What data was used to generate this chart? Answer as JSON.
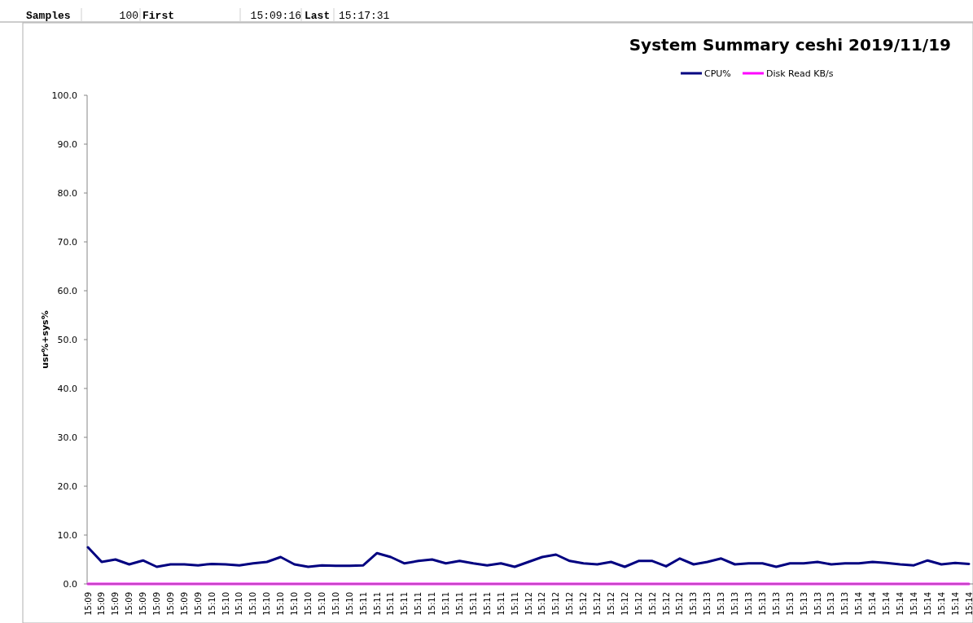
{
  "chart_data": {
    "type": "line",
    "title": "System Summary ceshi  2019/11/19",
    "ylabel": "usr%+sys%",
    "annotations": [
      "Samples",
      "100",
      "First",
      "15:09:16",
      "Last",
      "15:17:31"
    ],
    "categories": [
      "15:09",
      "15:09",
      "15:09",
      "15:09",
      "15:09",
      "15:09",
      "15:09",
      "15:09",
      "15:09",
      "15:10",
      "15:10",
      "15:10",
      "15:10",
      "15:10",
      "15:10",
      "15:10",
      "15:10",
      "15:10",
      "15:10",
      "15:10",
      "15:11",
      "15:11",
      "15:11",
      "15:11",
      "15:11",
      "15:11",
      "15:11",
      "15:11",
      "15:11",
      "15:11",
      "15:11",
      "15:11",
      "15:12",
      "15:12",
      "15:12",
      "15:12",
      "15:12",
      "15:12",
      "15:12",
      "15:12",
      "15:12",
      "15:12",
      "15:12",
      "15:12",
      "15:13",
      "15:13",
      "15:13",
      "15:13",
      "15:13",
      "15:13",
      "15:13",
      "15:13",
      "15:13",
      "15:13",
      "15:13",
      "15:13",
      "15:14",
      "15:14",
      "15:14",
      "15:14",
      "15:14",
      "15:14",
      "15:14",
      "15:14",
      "15:14"
    ],
    "series": [
      {
        "name": "CPU%",
        "color": "#000080",
        "values": [
          7.5,
          4.5,
          5.0,
          4.0,
          4.8,
          3.5,
          4.0,
          4.0,
          3.8,
          4.1,
          4.0,
          3.8,
          4.2,
          4.5,
          5.5,
          4.0,
          3.5,
          3.8,
          3.7,
          3.7,
          3.8,
          6.3,
          5.5,
          4.2,
          4.7,
          5.0,
          4.2,
          4.7,
          4.2,
          3.8,
          4.2,
          3.5,
          4.5,
          5.5,
          6.0,
          4.7,
          4.2,
          4.0,
          4.5,
          3.5,
          4.7,
          4.7,
          3.6,
          5.2,
          4.0,
          4.5,
          5.2,
          4.0,
          4.2,
          4.2,
          3.5,
          4.2,
          4.2,
          4.5,
          4.0,
          4.2,
          4.2,
          4.5,
          4.3,
          4.0,
          3.8,
          4.8,
          4.0,
          4.3,
          4.1
        ]
      },
      {
        "name": "Disk Read KB/s",
        "color": "#ff00ff",
        "values": [
          0,
          0,
          0,
          0,
          0,
          0,
          0,
          0,
          0,
          0,
          0,
          0,
          0,
          0,
          0,
          0,
          0,
          0,
          0,
          0,
          0,
          0,
          0,
          0,
          0,
          0,
          0,
          0,
          0,
          0,
          0,
          0,
          0,
          0,
          0,
          0,
          0,
          0,
          0,
          0,
          0,
          0,
          0,
          0,
          0,
          0,
          0,
          0,
          0,
          0,
          0,
          0,
          0,
          0,
          0,
          0,
          0,
          0,
          0,
          0,
          0,
          0,
          0,
          0,
          0
        ]
      }
    ],
    "ylim": [
      0,
      100
    ],
    "yticks": [
      {
        "value": 0,
        "label": "0.0"
      },
      {
        "value": 10,
        "label": "10.0"
      },
      {
        "value": 20,
        "label": "20.0"
      },
      {
        "value": 30,
        "label": "30.0"
      },
      {
        "value": 40,
        "label": "40.0"
      },
      {
        "value": 50,
        "label": "50.0"
      },
      {
        "value": 60,
        "label": "60.0"
      },
      {
        "value": 70,
        "label": "70.0"
      },
      {
        "value": 80,
        "label": "80.0"
      },
      {
        "value": 90,
        "label": "90.0"
      },
      {
        "value": 100,
        "label": "100.0"
      }
    ],
    "grid": false,
    "legend": "top right",
    "marker": "none",
    "line_style": "solid"
  }
}
